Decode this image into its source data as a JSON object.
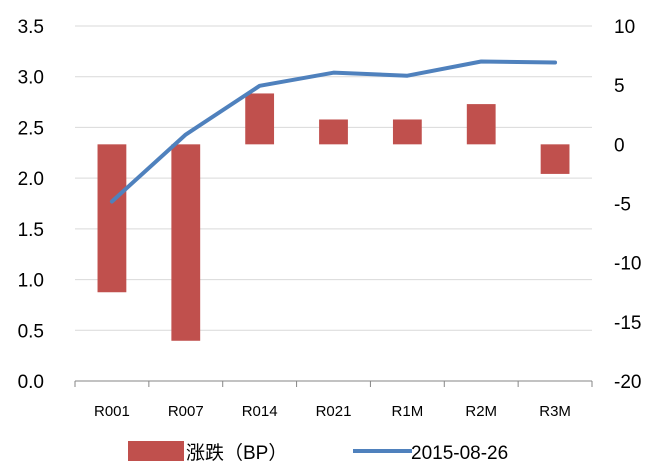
{
  "chart_data": {
    "type": "bar",
    "categories": [
      "R001",
      "R007",
      "R014",
      "R021",
      "R1M",
      "R2M",
      "R3M"
    ],
    "series": [
      {
        "name": "涨跌（BP）",
        "type": "bar",
        "axis": "right",
        "color": "#c0504d",
        "values": [
          -12.5,
          -16.6,
          4.3,
          2.1,
          2.1,
          3.4,
          -2.5
        ]
      },
      {
        "name": "2015-08-26",
        "type": "line",
        "axis": "left",
        "color": "#4f81bd",
        "values": [
          1.77,
          2.43,
          2.91,
          3.04,
          3.01,
          3.15,
          3.14
        ]
      }
    ],
    "left_axis": {
      "ylim": [
        0,
        3.5
      ],
      "ticks": [
        "0.0",
        "0.5",
        "1.0",
        "1.5",
        "2.0",
        "2.5",
        "3.0",
        "3.5"
      ]
    },
    "right_axis": {
      "ylim": [
        -20,
        10
      ],
      "ticks": [
        "-20",
        "-15",
        "-10",
        "-5",
        "0",
        "5",
        "10"
      ]
    },
    "grid": true,
    "legend": "bottom"
  }
}
